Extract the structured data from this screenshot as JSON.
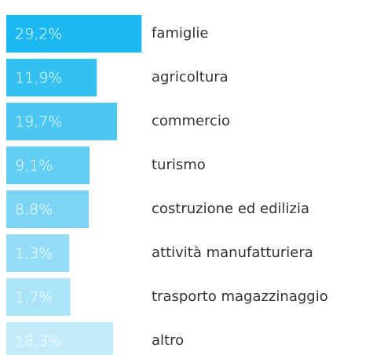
{
  "chart_data": {
    "type": "bar",
    "orientation": "horizontal",
    "categories": [
      "famiglie",
      "agricoltura",
      "commercio",
      "turismo",
      "costruzione ed edilizia",
      "attività manufatturiera",
      "trasporto magazzinaggio",
      "altro"
    ],
    "values": [
      29.2,
      11.9,
      19.7,
      9.1,
      8.8,
      1.3,
      1.7,
      18.3
    ],
    "value_labels": [
      "29,2%",
      "11,9%",
      "19,7%",
      "9,1%",
      "8,8%",
      "1,3%",
      "1,7%",
      "18,3%"
    ],
    "colors": [
      "#1cb8ef",
      "#34c0f0",
      "#4cc7f1",
      "#63cdf3",
      "#7cd5f4",
      "#95dcf6",
      "#abe3f7",
      "#c4ebfa"
    ]
  }
}
